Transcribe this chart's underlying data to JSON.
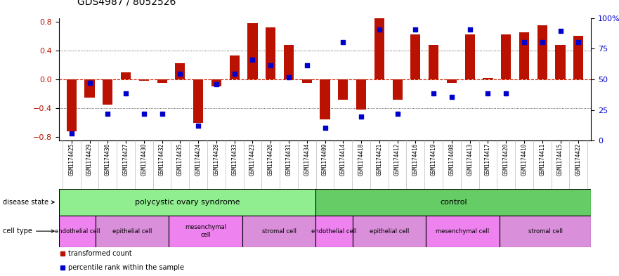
{
  "title": "GDS4987 / 8052526",
  "samples": [
    "GSM1174425",
    "GSM1174429",
    "GSM1174436",
    "GSM1174427",
    "GSM1174430",
    "GSM1174432",
    "GSM1174435",
    "GSM1174424",
    "GSM1174428",
    "GSM1174433",
    "GSM1174423",
    "GSM1174426",
    "GSM1174431",
    "GSM1174434",
    "GSM1174409",
    "GSM1174414",
    "GSM1174418",
    "GSM1174421",
    "GSM1174412",
    "GSM1174416",
    "GSM1174419",
    "GSM1174408",
    "GSM1174413",
    "GSM1174417",
    "GSM1174420",
    "GSM1174410",
    "GSM1174411",
    "GSM1174415",
    "GSM1174422"
  ],
  "bar_values": [
    -0.72,
    -0.25,
    -0.35,
    0.1,
    -0.02,
    -0.05,
    0.22,
    -0.6,
    -0.1,
    0.33,
    0.78,
    0.72,
    0.48,
    -0.05,
    -0.55,
    -0.28,
    -0.42,
    0.95,
    -0.28,
    0.62,
    0.48,
    -0.05,
    0.62,
    0.02,
    0.62,
    0.65,
    0.75,
    0.48,
    0.6
  ],
  "dot_values": [
    3,
    47,
    20,
    38,
    20,
    20,
    55,
    10,
    46,
    55,
    67,
    62,
    52,
    62,
    8,
    82,
    18,
    93,
    20,
    93,
    38,
    35,
    93,
    38,
    38,
    82,
    82,
    92,
    82
  ],
  "disease_state_groups": [
    {
      "label": "polycystic ovary syndrome",
      "start": 0,
      "end": 14,
      "color": "#90ee90"
    },
    {
      "label": "control",
      "start": 14,
      "end": 29,
      "color": "#66cc66"
    }
  ],
  "cell_type_groups": [
    {
      "label": "endothelial cell",
      "start": 0,
      "end": 2,
      "color": "#ee82ee"
    },
    {
      "label": "epithelial cell",
      "start": 2,
      "end": 6,
      "color": "#da8fda"
    },
    {
      "label": "mesenchymal\ncell",
      "start": 6,
      "end": 10,
      "color": "#ee82ee"
    },
    {
      "label": "stromal cell",
      "start": 10,
      "end": 14,
      "color": "#da8fda"
    },
    {
      "label": "endothelial cell",
      "start": 14,
      "end": 16,
      "color": "#ee82ee"
    },
    {
      "label": "epithelial cell",
      "start": 16,
      "end": 20,
      "color": "#da8fda"
    },
    {
      "label": "mesenchymal cell",
      "start": 20,
      "end": 24,
      "color": "#ee82ee"
    },
    {
      "label": "stromal cell",
      "start": 24,
      "end": 29,
      "color": "#da8fda"
    }
  ],
  "ylim_left": [
    -0.85,
    0.85
  ],
  "ylim_right": [
    0,
    100
  ],
  "yticks_left": [
    -0.8,
    -0.4,
    0.0,
    0.4,
    0.8
  ],
  "yticks_right": [
    0,
    25,
    50,
    75,
    100
  ],
  "bar_color": "#bb1100",
  "dot_color": "#0000cc",
  "zero_line_color": "#cc2200",
  "grid_dotted_color": "#333333",
  "title_fontsize": 10,
  "bar_width": 0.55
}
